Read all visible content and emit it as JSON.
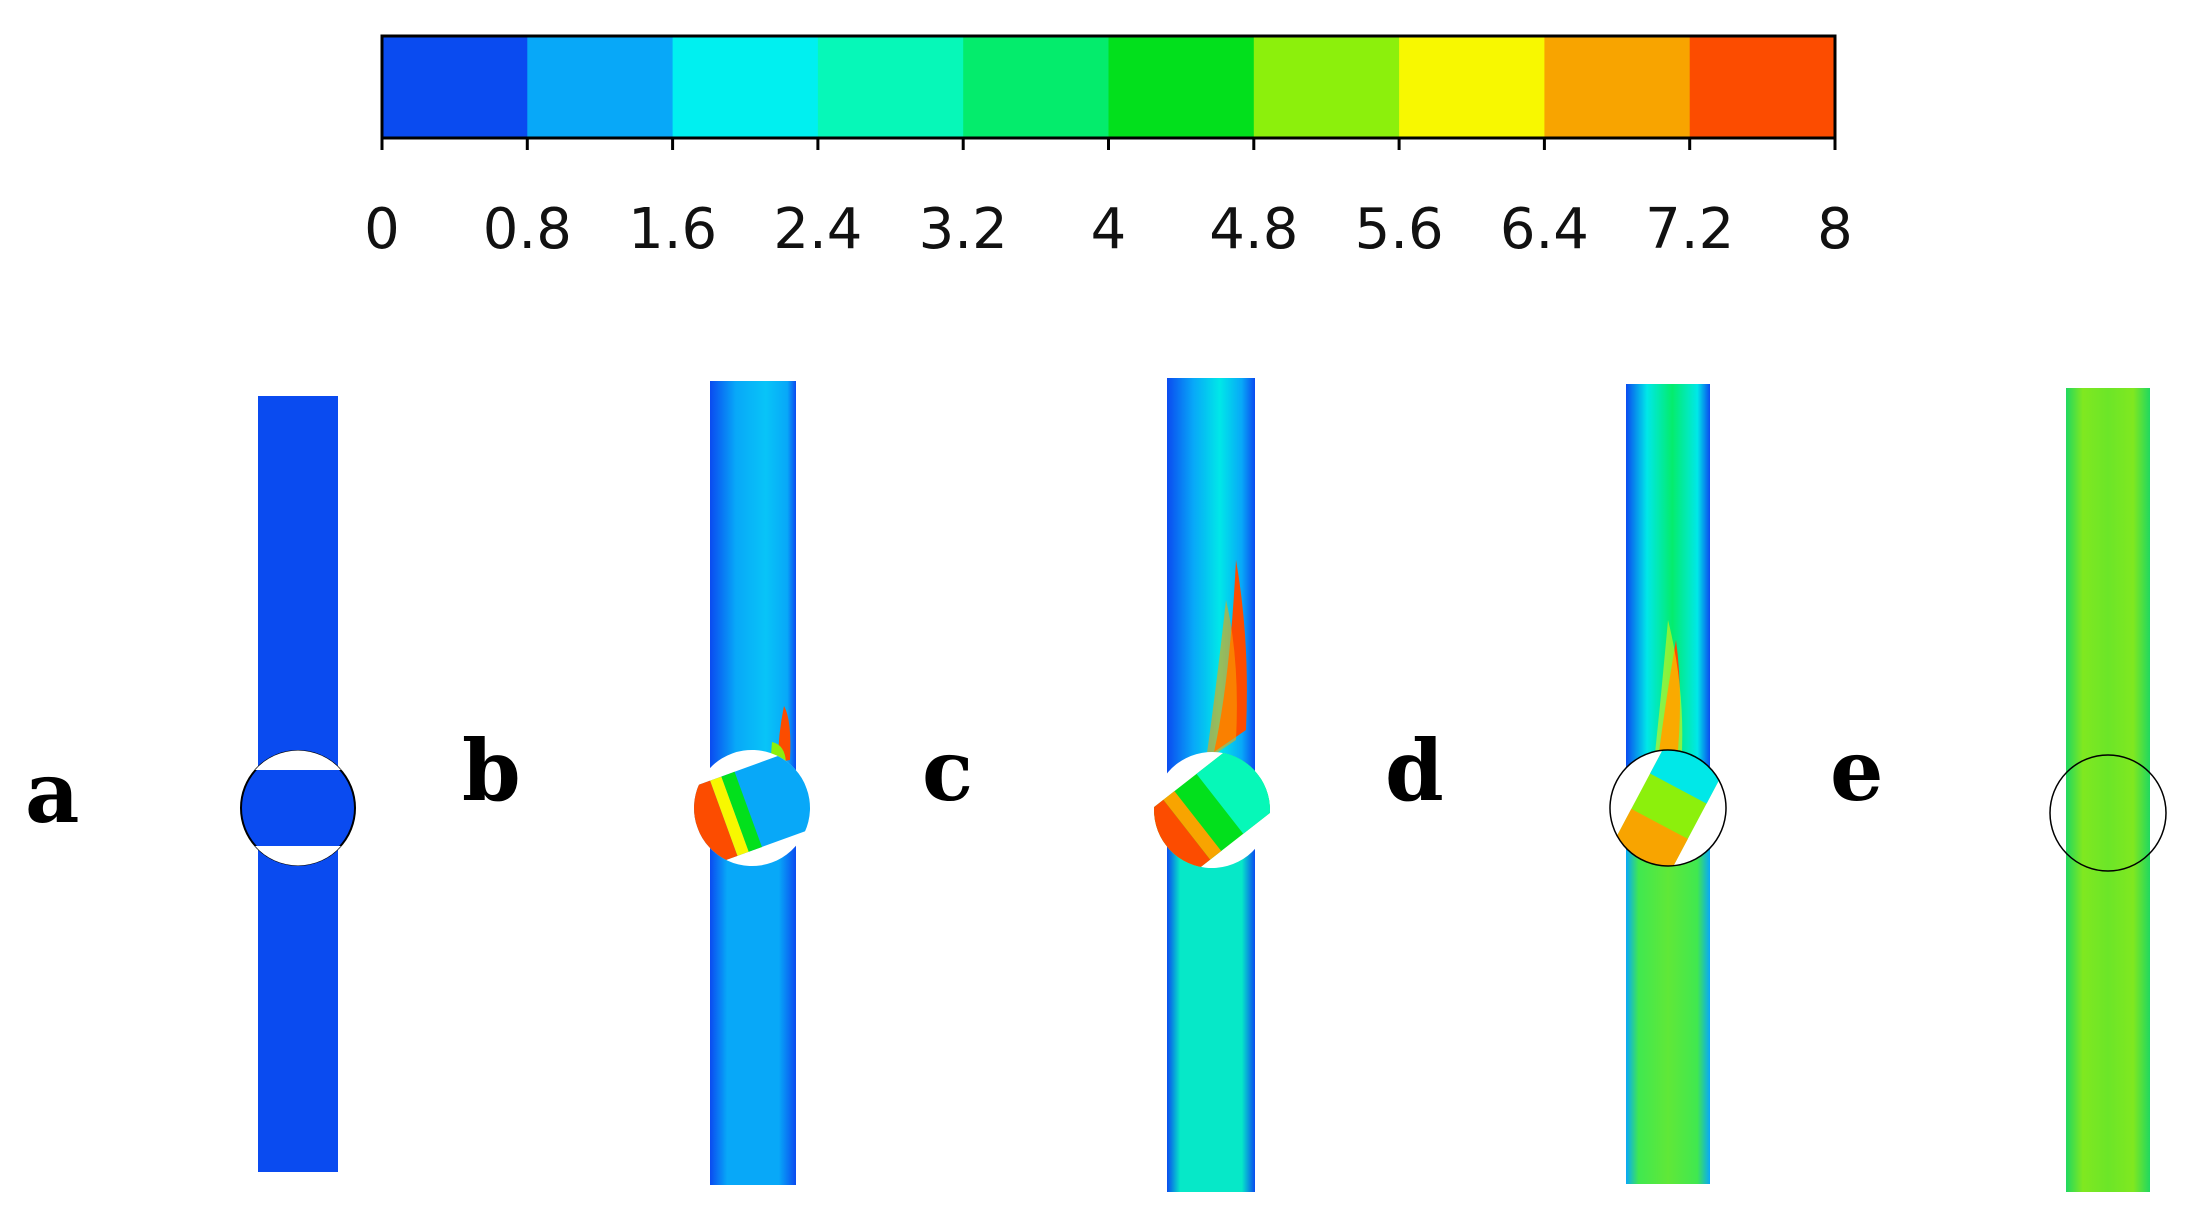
{
  "colorbar": {
    "ticks": [
      "0",
      "0.8",
      "1.6",
      "2.4",
      "3.2",
      "4",
      "4.8",
      "5.6",
      "6.4",
      "7.2",
      "8"
    ],
    "colors": [
      "#0a4bf0",
      "#08a8f8",
      "#00f0f0",
      "#06f8b8",
      "#04ec6c",
      "#02e01c",
      "#8cf00c",
      "#f8f800",
      "#f8a400",
      "#fc4c00"
    ]
  },
  "panels": [
    {
      "label": "a",
      "rotation_deg": 0,
      "valve": "open"
    },
    {
      "label": "b",
      "rotation_deg": -20,
      "valve": "partly-closed"
    },
    {
      "label": "c",
      "rotation_deg": -38,
      "valve": "partly-closed"
    },
    {
      "label": "d",
      "rotation_deg": -62,
      "valve": "mostly-closed"
    },
    {
      "label": "e",
      "rotation_deg": 90,
      "valve": "closed"
    }
  ]
}
